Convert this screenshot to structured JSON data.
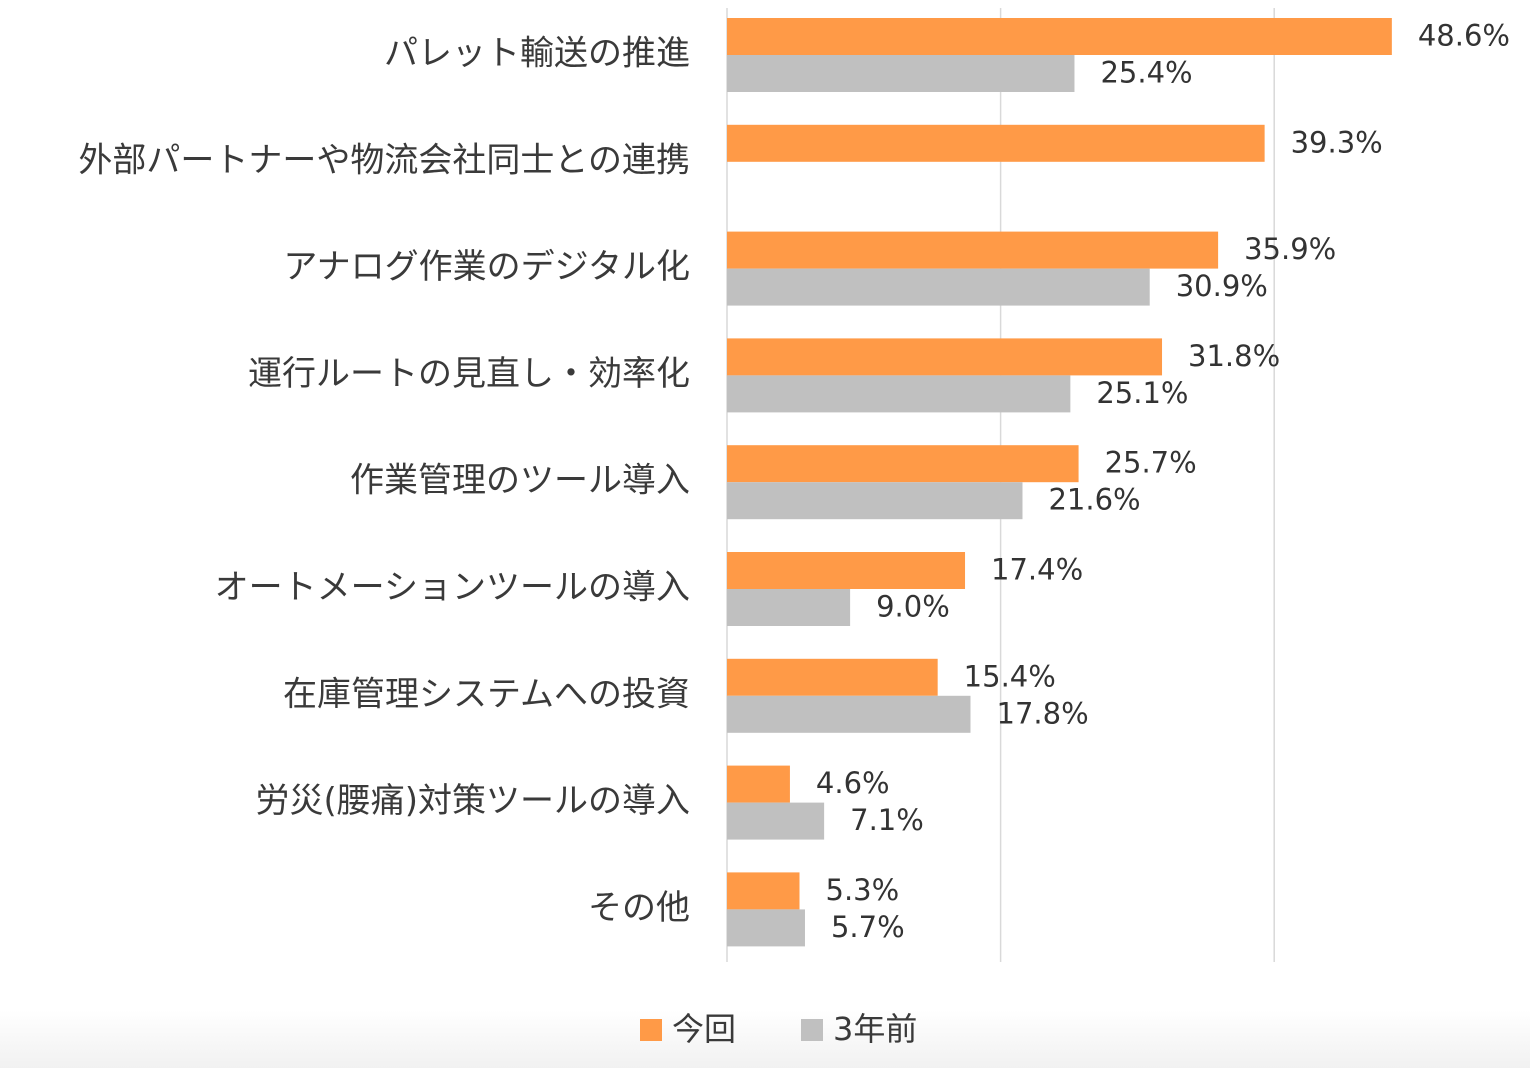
{
  "chart_data": {
    "type": "bar",
    "orientation": "horizontal",
    "categories": [
      "パレット輸送の推進",
      "外部パートナーや物流会社同士との連携",
      "アナログ作業のデジタル化",
      "運行ルートの見直し・効率化",
      "作業管理のツール導入",
      "オートメーションツールの導入",
      "在庫管理システムへの投資",
      "労災(腰痛)対策ツールの導入",
      "その他"
    ],
    "series": [
      {
        "name": "今回",
        "color": "#ff9a47",
        "values": [
          48.6,
          39.3,
          35.9,
          31.8,
          25.7,
          17.4,
          15.4,
          4.6,
          5.3
        ],
        "labels": [
          "48.6%",
          "39.3%",
          "35.9%",
          "31.8%",
          "25.7%",
          "17.4%",
          "15.4%",
          "4.6%",
          "5.3%"
        ]
      },
      {
        "name": "3年前",
        "color": "#c0c0c0",
        "values": [
          25.4,
          null,
          30.9,
          25.1,
          21.6,
          9.0,
          17.8,
          7.1,
          5.7
        ],
        "labels": [
          "25.4%",
          null,
          "30.9%",
          "25.1%",
          "21.6%",
          "9.0%",
          "17.8%",
          "7.1%",
          "5.7%"
        ]
      }
    ],
    "xlim": [
      0,
      60
    ],
    "gridlines_at": [
      0,
      20,
      40
    ],
    "grid": true,
    "show_axis_tick_labels": false,
    "legend_position": "bottom",
    "title": "",
    "xlabel": "",
    "ylabel": ""
  }
}
